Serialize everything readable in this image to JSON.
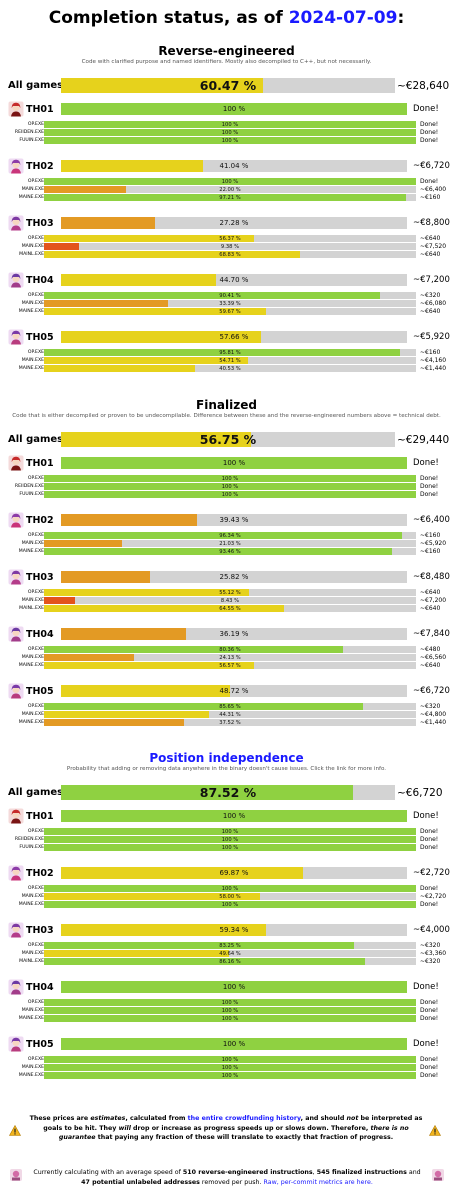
{
  "header": {
    "title_prefix": "Completion status, as of ",
    "date": "2024-07-09",
    "title_suffix": ":"
  },
  "colors": {
    "green": "#8fd141",
    "yellow": "#e6d21c",
    "orange": "#e39a24",
    "deep_orange": "#e3541c",
    "track": "#d3d3d3",
    "link": "#1a1aff"
  },
  "icons": {
    "TH01": "th01-portrait-icon",
    "TH02": "th02-portrait-icon",
    "TH03": "th03-portrait-icon",
    "TH04": "th04-portrait-icon",
    "TH05": "th05-portrait-icon",
    "warning": "warning-triangle-icon",
    "mascot": "mascot-icon"
  },
  "sections": [
    {
      "title": "Reverse-engineered",
      "description": "Code with clarified purpose and named identifiers. Mostly also decompiled to C++, but not necessarily.",
      "link": false,
      "all": {
        "label": "All games",
        "pct": 60.47,
        "text": "60.47 %",
        "price": "~€28,640"
      },
      "games": [
        {
          "name": "TH01",
          "pct": 100,
          "text": "100 %",
          "price": "Done!",
          "files": [
            {
              "name": "OP.EXE",
              "pct": 100,
              "text": "100 %",
              "price": "Done!"
            },
            {
              "name": "REIIDEN.EXE",
              "pct": 100,
              "text": "100 %",
              "price": "Done!"
            },
            {
              "name": "FUUIN.EXE",
              "pct": 100,
              "text": "100 %",
              "price": "Done!"
            }
          ]
        },
        {
          "name": "TH02",
          "pct": 41.04,
          "text": "41.04 %",
          "price": "~€6,720",
          "files": [
            {
              "name": "OP.EXE",
              "pct": 100,
              "text": "100 %",
              "price": "Done!"
            },
            {
              "name": "MAIN.EXE",
              "pct": 22.0,
              "text": "22.00 %",
              "price": "~€6,400"
            },
            {
              "name": "MAINE.EXE",
              "pct": 97.21,
              "text": "97.21 %",
              "price": "~€160"
            }
          ]
        },
        {
          "name": "TH03",
          "pct": 27.28,
          "text": "27.28 %",
          "price": "~€8,800",
          "files": [
            {
              "name": "OP.EXE",
              "pct": 56.37,
              "text": "56.37 %",
              "price": "~€640"
            },
            {
              "name": "MAIN.EXE",
              "pct": 9.38,
              "text": "9.38 %",
              "price": "~€7,520"
            },
            {
              "name": "MAINL.EXE",
              "pct": 68.83,
              "text": "68.83 %",
              "price": "~€640"
            }
          ]
        },
        {
          "name": "TH04",
          "pct": 44.7,
          "text": "44.70 %",
          "price": "~€7,200",
          "files": [
            {
              "name": "OP.EXE",
              "pct": 90.41,
              "text": "90.41 %",
              "price": "~€320"
            },
            {
              "name": "MAIN.EXE",
              "pct": 33.39,
              "text": "33.39 %",
              "price": "~€6,080"
            },
            {
              "name": "MAINE.EXE",
              "pct": 59.67,
              "text": "59.67 %",
              "price": "~€640"
            }
          ]
        },
        {
          "name": "TH05",
          "pct": 57.66,
          "text": "57.66 %",
          "price": "~€5,920",
          "files": [
            {
              "name": "OP.EXE",
              "pct": 95.81,
              "text": "95.81 %",
              "price": "~€160"
            },
            {
              "name": "MAIN.EXE",
              "pct": 54.71,
              "text": "54.71 %",
              "price": "~€4,160"
            },
            {
              "name": "MAINE.EXE",
              "pct": 40.53,
              "text": "40.53 %",
              "price": "~€1,440"
            }
          ]
        }
      ]
    },
    {
      "title": "Finalized",
      "description": "Code that is either decompiled or proven to be undecompilable. Difference between these and the reverse-engineered numbers above = technical debt.",
      "link": false,
      "all": {
        "label": "All games",
        "pct": 56.75,
        "text": "56.75 %",
        "price": "~€29,440"
      },
      "games": [
        {
          "name": "TH01",
          "pct": 100,
          "text": "100 %",
          "price": "Done!",
          "files": [
            {
              "name": "OP.EXE",
              "pct": 100,
              "text": "100 %",
              "price": "Done!"
            },
            {
              "name": "REIIDEN.EXE",
              "pct": 100,
              "text": "100 %",
              "price": "Done!"
            },
            {
              "name": "FUUIN.EXE",
              "pct": 100,
              "text": "100 %",
              "price": "Done!"
            }
          ]
        },
        {
          "name": "TH02",
          "pct": 39.43,
          "text": "39.43 %",
          "price": "~€6,400",
          "files": [
            {
              "name": "OP.EXE",
              "pct": 96.34,
              "text": "96.34 %",
              "price": "~€160"
            },
            {
              "name": "MAIN.EXE",
              "pct": 21.03,
              "text": "21.03 %",
              "price": "~€5,920"
            },
            {
              "name": "MAINE.EXE",
              "pct": 93.46,
              "text": "93.46 %",
              "price": "~€160"
            }
          ]
        },
        {
          "name": "TH03",
          "pct": 25.82,
          "text": "25.82 %",
          "price": "~€8,480",
          "files": [
            {
              "name": "OP.EXE",
              "pct": 55.12,
              "text": "55.12 %",
              "price": "~€640"
            },
            {
              "name": "MAIN.EXE",
              "pct": 8.43,
              "text": "8.43 %",
              "price": "~€7,200"
            },
            {
              "name": "MAINL.EXE",
              "pct": 64.55,
              "text": "64.55 %",
              "price": "~€640"
            }
          ]
        },
        {
          "name": "TH04",
          "pct": 36.19,
          "text": "36.19 %",
          "price": "~€7,840",
          "files": [
            {
              "name": "OP.EXE",
              "pct": 80.36,
              "text": "80.36 %",
              "price": "~€480"
            },
            {
              "name": "MAIN.EXE",
              "pct": 24.13,
              "text": "24.13 %",
              "price": "~€6,560"
            },
            {
              "name": "MAINE.EXE",
              "pct": 56.57,
              "text": "56.57 %",
              "price": "~€640"
            }
          ]
        },
        {
          "name": "TH05",
          "pct": 48.72,
          "text": "48.72 %",
          "price": "~€6,720",
          "files": [
            {
              "name": "OP.EXE",
              "pct": 85.65,
              "text": "85.65 %",
              "price": "~€320"
            },
            {
              "name": "MAIN.EXE",
              "pct": 44.31,
              "text": "44.31 %",
              "price": "~€4,800"
            },
            {
              "name": "MAINE.EXE",
              "pct": 37.52,
              "text": "37.52 %",
              "price": "~€1,440"
            }
          ]
        }
      ]
    },
    {
      "title": "Position independence",
      "description": "Probability that adding or removing data anywhere in the binary doesn't cause issues. Click the link for more info.",
      "link": true,
      "all": {
        "label": "All games",
        "pct": 87.52,
        "text": "87.52 %",
        "price": "~€6,720"
      },
      "games": [
        {
          "name": "TH01",
          "pct": 100,
          "text": "100 %",
          "price": "Done!",
          "files": [
            {
              "name": "OP.EXE",
              "pct": 100,
              "text": "100 %",
              "price": "Done!"
            },
            {
              "name": "REIIDEN.EXE",
              "pct": 100,
              "text": "100 %",
              "price": "Done!"
            },
            {
              "name": "FUUIN.EXE",
              "pct": 100,
              "text": "100 %",
              "price": "Done!"
            }
          ]
        },
        {
          "name": "TH02",
          "pct": 69.87,
          "text": "69.87 %",
          "price": "~€2,720",
          "files": [
            {
              "name": "OP.EXE",
              "pct": 100,
              "text": "100 %",
              "price": "Done!"
            },
            {
              "name": "MAIN.EXE",
              "pct": 58.0,
              "text": "58.00 %",
              "price": "~€2,720"
            },
            {
              "name": "MAINE.EXE",
              "pct": 100,
              "text": "100 %",
              "price": "Done!"
            }
          ]
        },
        {
          "name": "TH03",
          "pct": 59.34,
          "text": "59.34 %",
          "price": "~€4,000",
          "files": [
            {
              "name": "OP.EXE",
              "pct": 83.25,
              "text": "83.25 %",
              "price": "~€320"
            },
            {
              "name": "MAIN.EXE",
              "pct": 49.64,
              "text": "49.64 %",
              "price": "~€3,360"
            },
            {
              "name": "MAINL.EXE",
              "pct": 86.16,
              "text": "86.16 %",
              "price": "~€320"
            }
          ]
        },
        {
          "name": "TH04",
          "pct": 100,
          "text": "100 %",
          "price": "Done!",
          "files": [
            {
              "name": "OP.EXE",
              "pct": 100,
              "text": "100 %",
              "price": "Done!"
            },
            {
              "name": "MAIN.EXE",
              "pct": 100,
              "text": "100 %",
              "price": "Done!"
            },
            {
              "name": "MAINE.EXE",
              "pct": 100,
              "text": "100 %",
              "price": "Done!"
            }
          ]
        },
        {
          "name": "TH05",
          "pct": 100,
          "text": "100 %",
          "price": "Done!",
          "files": [
            {
              "name": "OP.EXE",
              "pct": 100,
              "text": "100 %",
              "price": "Done!"
            },
            {
              "name": "MAIN.EXE",
              "pct": 100,
              "text": "100 %",
              "price": "Done!"
            },
            {
              "name": "MAINE.EXE",
              "pct": 100,
              "text": "100 %",
              "price": "Done!"
            }
          ]
        }
      ]
    }
  ],
  "footer": {
    "disclaimer": {
      "t1": "These prices are ",
      "t2": "estimates",
      "t3": ", calculated from ",
      "link": "the entire crowdfunding history",
      "t4": ", and should ",
      "t5": "not",
      "t6": " be interpreted as goals to be hit. They ",
      "t7": "will",
      "t8": " drop or increase as progress speeds up or slows down. Therefore, ",
      "t9": "there is no guarantee",
      "t10": " that paying any fraction of these will translate to exactly that fraction of progress."
    },
    "speed": {
      "t1": "Currently calculating with an average speed of ",
      "n1": "510 reverse-engineered instructions",
      "t2": ", ",
      "n2": "545 finalized instructions",
      "t3": " and ",
      "n3": "47 potential unlabeled addresses",
      "t4": " removed per push. ",
      "link": "Raw, per-commit metrics are here."
    }
  }
}
